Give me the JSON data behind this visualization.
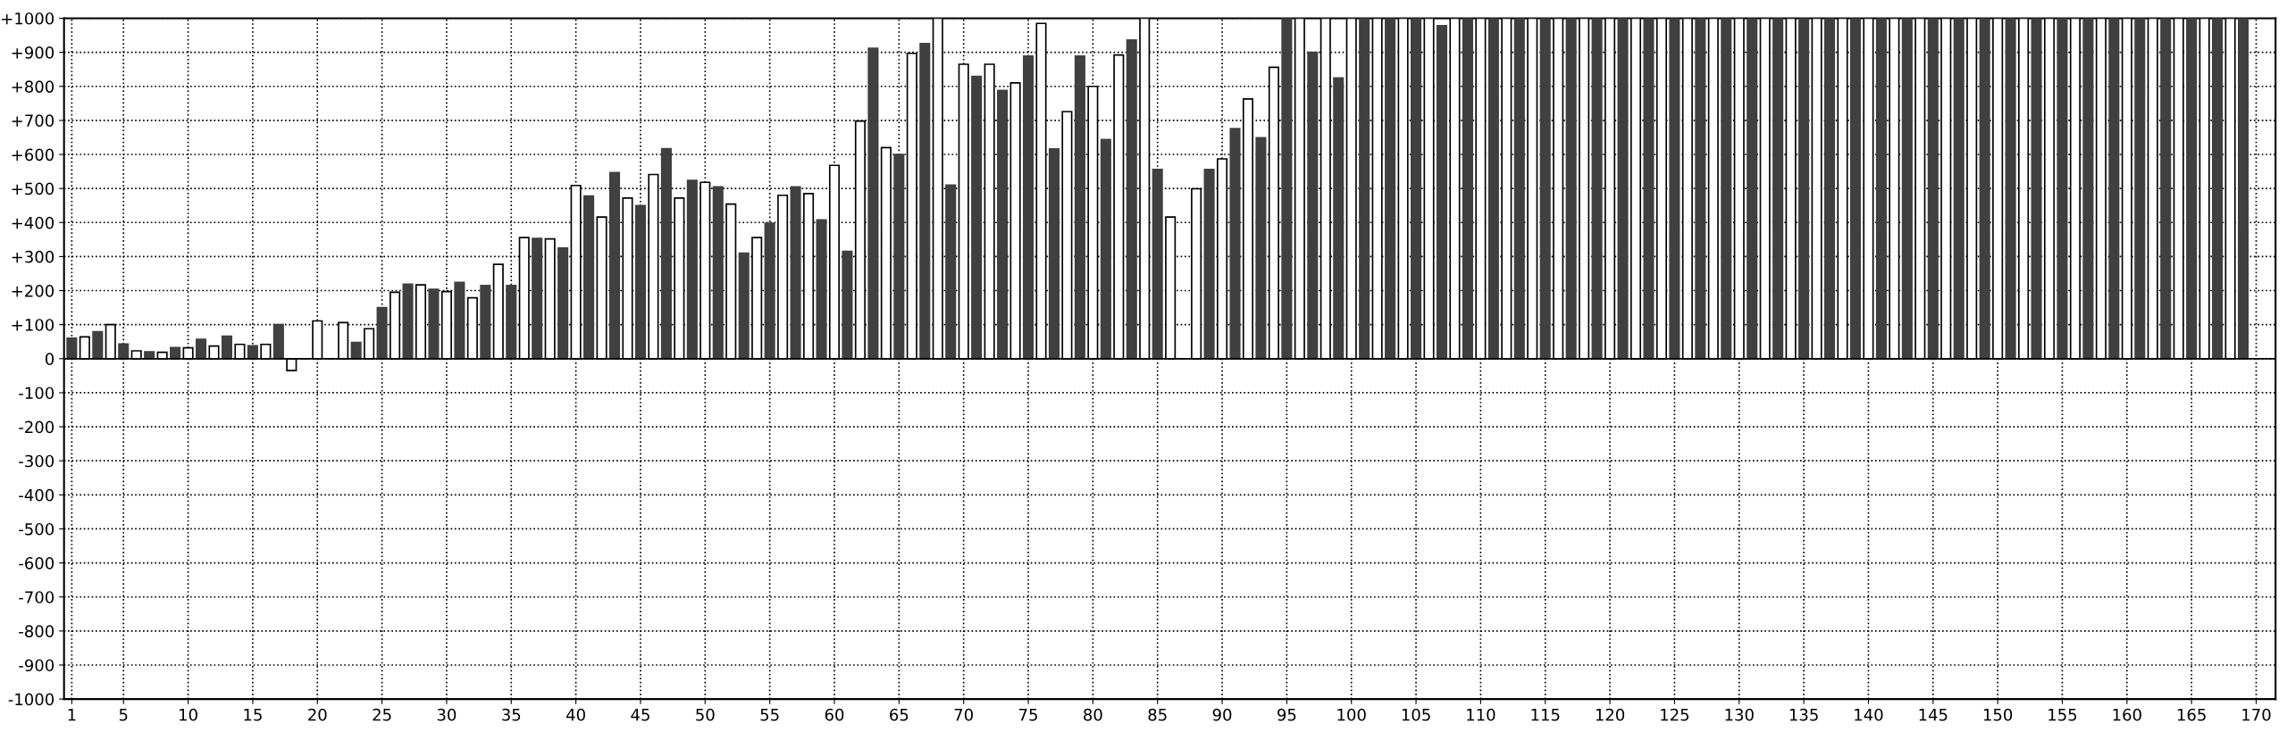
{
  "chart_data": {
    "type": "bar",
    "x": [
      1,
      2,
      3,
      4,
      5,
      6,
      7,
      8,
      9,
      10,
      11,
      12,
      13,
      14,
      15,
      16,
      17,
      18,
      19,
      20,
      21,
      22,
      23,
      24,
      25,
      26,
      27,
      28,
      29,
      30,
      31,
      32,
      33,
      34,
      35,
      36,
      37,
      38,
      39,
      40,
      41,
      42,
      43,
      44,
      45,
      46,
      47,
      48,
      49,
      50,
      51,
      52,
      53,
      54,
      55,
      56,
      57,
      58,
      59,
      60,
      61,
      62,
      63,
      64,
      65,
      66,
      67,
      68,
      69,
      70,
      71,
      72,
      73,
      74,
      75,
      76,
      77,
      78,
      79,
      80,
      81,
      82,
      83,
      84,
      85,
      86,
      87,
      88,
      89,
      90,
      91,
      92,
      93,
      94,
      95,
      96,
      97,
      98,
      99,
      100,
      101,
      102,
      103,
      104,
      105,
      106,
      107,
      108,
      109,
      110,
      111,
      112,
      113,
      114,
      115,
      116,
      117,
      118,
      119,
      120,
      121,
      122,
      123,
      124,
      125,
      126,
      127,
      128,
      129,
      130,
      131,
      132,
      133,
      134,
      135,
      136,
      137,
      138,
      139,
      140,
      141,
      142,
      143,
      144,
      145,
      146,
      147,
      148,
      149,
      150,
      151,
      152,
      153,
      154,
      155,
      156,
      157,
      158,
      159,
      160,
      161,
      162,
      163,
      164,
      165,
      166,
      167,
      168,
      169
    ],
    "values": [
      60,
      64,
      79,
      100,
      43,
      23,
      20,
      19,
      33,
      32,
      57,
      37,
      66,
      42,
      38,
      42,
      100,
      -35,
      0,
      111,
      0,
      106,
      48,
      88,
      150,
      195,
      219,
      217,
      204,
      197,
      224,
      179,
      215,
      277,
      215,
      356,
      353,
      352,
      325,
      509,
      478,
      416,
      547,
      472,
      450,
      541,
      617,
      472,
      524,
      518,
      505,
      454,
      310,
      356,
      398,
      480,
      505,
      485,
      408,
      568,
      315,
      698,
      912,
      620,
      600,
      897,
      926,
      1000,
      510,
      865,
      829,
      865,
      788,
      810,
      889,
      985,
      616,
      726,
      889,
      800,
      644,
      892,
      936,
      1000,
      556,
      416,
      0,
      499,
      556,
      587,
      676,
      763,
      649,
      856,
      1000,
      1000,
      900,
      1000,
      825,
      1000,
      1000,
      1000,
      1000,
      1000,
      1000,
      1000,
      978,
      1000,
      1000,
      1000,
      1000,
      1000,
      1000,
      1000,
      1000,
      1000,
      1000,
      1000,
      1000,
      1000,
      1000,
      1000,
      1000,
      1000,
      1000,
      1000,
      1000,
      1000,
      1000,
      1000,
      1000,
      1000,
      1000,
      1000,
      1000,
      1000,
      1000,
      1000,
      1000,
      1000,
      1000,
      1000,
      1000,
      1000,
      1000,
      1000,
      1000,
      1000,
      1000,
      1000,
      1000,
      1000,
      1000,
      1000,
      1000,
      1000,
      1000,
      1000,
      1000,
      1000,
      1000,
      1000,
      1000,
      1000,
      1000,
      1000,
      1000,
      1000,
      1000
    ],
    "colors": [
      "#404040",
      "#ffffff",
      "#404040",
      "#ffffff",
      "#404040",
      "#ffffff",
      "#404040",
      "#ffffff",
      "#404040",
      "#ffffff",
      "#404040",
      "#ffffff",
      "#404040",
      "#ffffff",
      "#404040",
      "#ffffff",
      "#404040",
      "#ffffff",
      "#404040",
      "#ffffff",
      "#404040",
      "#ffffff",
      "#404040",
      "#ffffff",
      "#404040",
      "#ffffff",
      "#404040",
      "#ffffff",
      "#404040",
      "#ffffff",
      "#404040",
      "#ffffff",
      "#404040",
      "#ffffff",
      "#404040",
      "#ffffff",
      "#404040",
      "#ffffff",
      "#404040",
      "#ffffff",
      "#404040",
      "#ffffff",
      "#404040",
      "#ffffff",
      "#404040",
      "#ffffff",
      "#404040",
      "#ffffff",
      "#404040",
      "#ffffff",
      "#404040",
      "#ffffff",
      "#404040",
      "#ffffff",
      "#404040",
      "#ffffff",
      "#404040",
      "#ffffff",
      "#404040",
      "#ffffff",
      "#404040",
      "#ffffff",
      "#404040",
      "#ffffff",
      "#404040",
      "#ffffff",
      "#404040",
      "#ffffff",
      "#404040",
      "#ffffff",
      "#404040",
      "#ffffff",
      "#404040",
      "#ffffff",
      "#404040",
      "#ffffff",
      "#404040",
      "#ffffff",
      "#404040",
      "#ffffff",
      "#404040",
      "#ffffff",
      "#404040",
      "#ffffff",
      "#404040",
      "#ffffff",
      "#404040",
      "#ffffff",
      "#404040",
      "#ffffff",
      "#404040",
      "#ffffff",
      "#404040",
      "#ffffff",
      "#404040",
      "#ffffff",
      "#404040",
      "#ffffff",
      "#404040",
      "#ffffff",
      "#404040",
      "#ffffff",
      "#404040",
      "#ffffff",
      "#404040",
      "#ffffff",
      "#404040",
      "#ffffff",
      "#404040",
      "#ffffff",
      "#404040",
      "#ffffff",
      "#404040",
      "#ffffff",
      "#404040",
      "#ffffff",
      "#404040",
      "#ffffff",
      "#404040",
      "#ffffff",
      "#404040",
      "#ffffff",
      "#404040",
      "#ffffff",
      "#404040",
      "#ffffff",
      "#404040",
      "#ffffff",
      "#404040",
      "#ffffff",
      "#404040",
      "#ffffff",
      "#404040",
      "#ffffff",
      "#404040",
      "#ffffff",
      "#404040",
      "#ffffff",
      "#404040",
      "#ffffff",
      "#404040",
      "#ffffff",
      "#404040",
      "#ffffff",
      "#404040",
      "#ffffff",
      "#404040",
      "#ffffff",
      "#404040",
      "#ffffff",
      "#404040",
      "#ffffff",
      "#404040",
      "#ffffff",
      "#404040",
      "#ffffff",
      "#404040",
      "#ffffff",
      "#404040",
      "#ffffff",
      "#404040",
      "#ffffff",
      "#404040",
      "#ffffff",
      "#404040",
      "#ffffff",
      "#404040",
      "#ffffff",
      "#404040"
    ],
    "xlim": [
      0.4,
      171.5
    ],
    "xticks": [
      1,
      5,
      10,
      15,
      20,
      25,
      30,
      35,
      40,
      45,
      50,
      55,
      60,
      65,
      70,
      75,
      80,
      85,
      90,
      95,
      100,
      105,
      110,
      115,
      120,
      125,
      130,
      135,
      140,
      145,
      150,
      155,
      160,
      165,
      170
    ],
    "ylim": [
      -1000,
      1000
    ],
    "yticks": [
      {
        "value": 1000,
        "label": "+1000"
      },
      {
        "value": 900,
        "label": "+900"
      },
      {
        "value": 800,
        "label": "+800"
      },
      {
        "value": 700,
        "label": "+700"
      },
      {
        "value": 600,
        "label": "+600"
      },
      {
        "value": 500,
        "label": "+500"
      },
      {
        "value": 400,
        "label": "+400"
      },
      {
        "value": 300,
        "label": "+300"
      },
      {
        "value": 200,
        "label": "+200"
      },
      {
        "value": 100,
        "label": "+100"
      },
      0,
      {
        "value": -100,
        "label": "-100"
      },
      {
        "value": -200,
        "label": "-200"
      },
      {
        "value": -300,
        "label": "-300"
      },
      {
        "value": -400,
        "label": "-400"
      },
      {
        "value": -500,
        "label": "-500"
      },
      {
        "value": -600,
        "label": "-600"
      },
      {
        "value": -700,
        "label": "-700"
      },
      {
        "value": -800,
        "label": "-800"
      },
      {
        "value": -900,
        "label": "-900"
      },
      {
        "value": -1000,
        "label": "-1000"
      }
    ],
    "grid": true,
    "legend": false
  }
}
